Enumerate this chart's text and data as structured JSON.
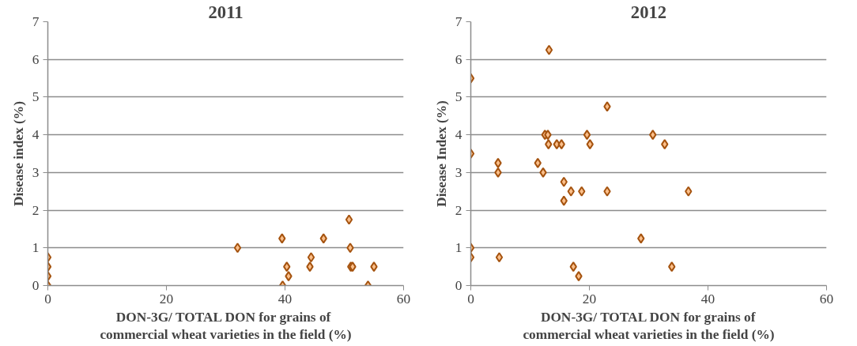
{
  "chart_data": [
    {
      "type": "scatter",
      "title": "2011",
      "xlabel": "DON-3G/ TOTAL DON  for grains of\ncommercial wheat varieties in the field (%)",
      "ylabel": "Disease index (%)",
      "marker": "diamond",
      "grid": "y",
      "xlim": [
        0,
        60
      ],
      "ylim": [
        0,
        7
      ],
      "xticks": [
        0,
        20,
        40,
        60
      ],
      "yticks": [
        0,
        1,
        2,
        3,
        4,
        5,
        6,
        7
      ],
      "series": [
        {
          "color": "#fbbf8a",
          "x": [
            0,
            0,
            0,
            0,
            32.0,
            39.5,
            40.3,
            40.6,
            39.6,
            44.4,
            44.2,
            46.5,
            50.8,
            51.0,
            51.1,
            51.4,
            55.0,
            54.0
          ],
          "values": [
            0.75,
            0.5,
            0.25,
            0,
            1,
            1.25,
            0.5,
            0.25,
            0,
            0.75,
            0.5,
            1.25,
            1.75,
            1.0,
            0.5,
            0.5,
            0.5,
            0
          ]
        }
      ]
    },
    {
      "type": "scatter",
      "title": "2012",
      "xlabel": "DON-3G/ TOTAL DON for grains of\ncommercial wheat varieties in the field (%)",
      "ylabel": "Disease Index (%)",
      "marker": "diamond",
      "grid": "y",
      "xlim": [
        0,
        60
      ],
      "ylim": [
        0,
        7
      ],
      "xticks": [
        0,
        20,
        40,
        60
      ],
      "yticks": [
        0,
        1,
        2,
        3,
        4,
        5,
        6,
        7
      ],
      "series": [
        {
          "color": "#fbbf8a",
          "x": [
            0,
            0,
            0,
            0,
            4.6,
            4.6,
            4.8,
            13.2,
            11.3,
            12.2,
            12.5,
            13.0,
            13.1,
            14.5,
            15.3,
            15.7,
            15.7,
            16.9,
            17.3,
            18.2,
            18.7,
            19.6,
            20.1,
            23.0,
            23.0,
            28.7,
            30.7,
            32.7,
            33.9,
            36.7
          ],
          "values": [
            5.5,
            3.5,
            1,
            0.75,
            3.25,
            3.0,
            0.75,
            6.25,
            3.25,
            3.0,
            4.0,
            4.0,
            3.75,
            3.75,
            3.75,
            2.75,
            2.25,
            2.5,
            0.5,
            0.25,
            2.5,
            4.0,
            3.75,
            4.75,
            2.5,
            1.25,
            4.0,
            3.75,
            0.5,
            2.5
          ]
        }
      ]
    }
  ]
}
